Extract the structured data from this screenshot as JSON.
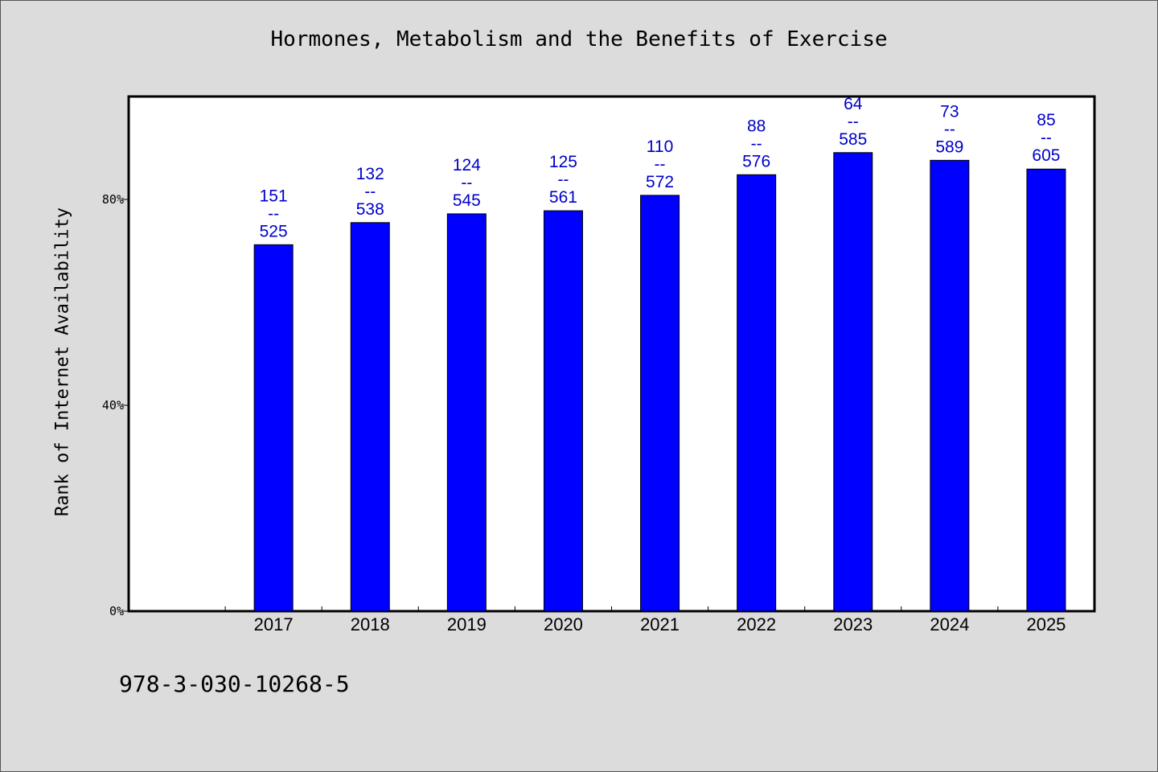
{
  "chart_data": {
    "type": "bar",
    "title": "Hormones, Metabolism and the Benefits of Exercise",
    "ylabel": "Rank of Internet Availability",
    "xlabel": "",
    "categories": [
      "2017",
      "2018",
      "2019",
      "2020",
      "2021",
      "2022",
      "2023",
      "2024",
      "2025"
    ],
    "values": [
      71.2,
      75.5,
      77.2,
      77.8,
      80.8,
      84.8,
      89.1,
      87.6,
      85.9
    ],
    "data_labels": [
      [
        "151",
        "--",
        "525"
      ],
      [
        "132",
        "--",
        "538"
      ],
      [
        "124",
        "--",
        "545"
      ],
      [
        "125",
        "--",
        "561"
      ],
      [
        "110",
        "--",
        "572"
      ],
      [
        "88",
        "--",
        "576"
      ],
      [
        "64",
        "--",
        "585"
      ],
      [
        "73",
        "--",
        "589"
      ],
      [
        "85",
        "--",
        "605"
      ]
    ],
    "y_ticks": [
      {
        "value": 0,
        "label": "0%"
      },
      {
        "value": 40,
        "label": "40%"
      },
      {
        "value": 80,
        "label": "80%"
      }
    ],
    "ylim": [
      0,
      100
    ],
    "x_slots": 10,
    "grid": false,
    "colors": {
      "bar": "#0000ff",
      "bar_outline": "#000000",
      "data_label": "#0000cc",
      "plot_background": "#ffffff",
      "page_background": "#dcdcdc"
    }
  },
  "footer": {
    "isbn": "978-3-030-10268-5"
  }
}
